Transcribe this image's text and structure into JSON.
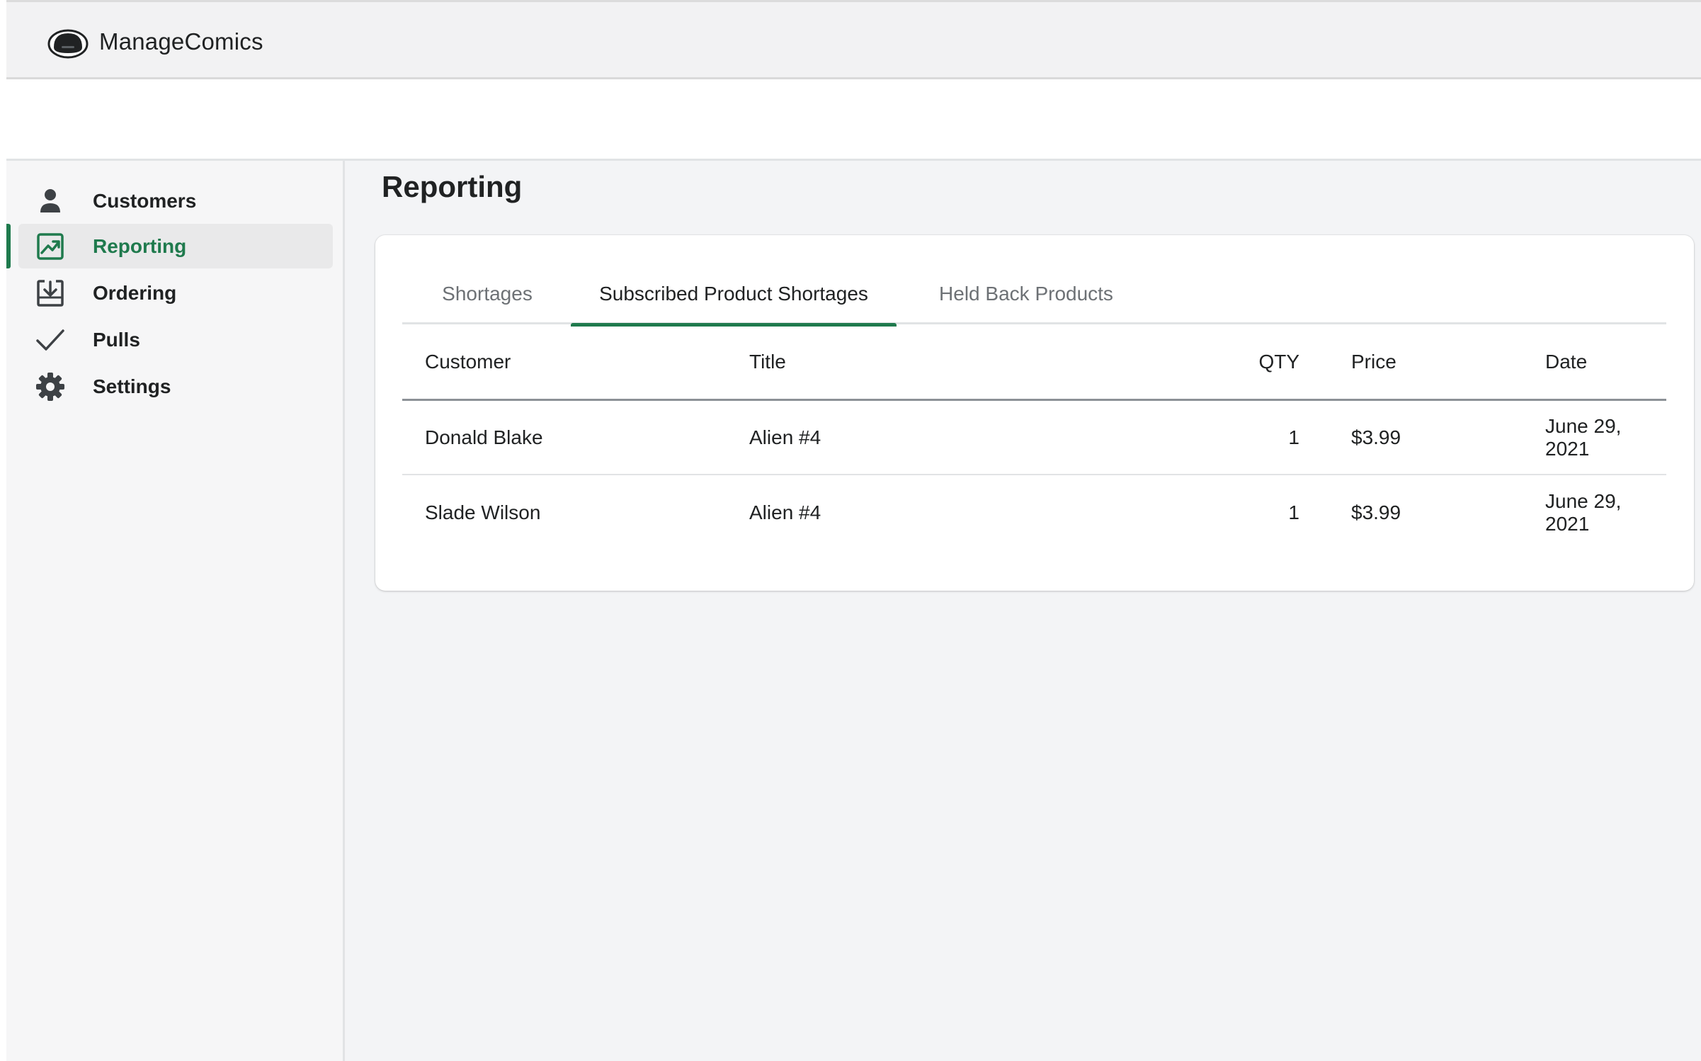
{
  "app": {
    "name": "ManageComics",
    "logo_icon": "robot-head-icon"
  },
  "sidebar": {
    "items": [
      {
        "label": "Customers",
        "icon": "person-icon",
        "active": false
      },
      {
        "label": "Reporting",
        "icon": "report-chart-icon",
        "active": true
      },
      {
        "label": "Ordering",
        "icon": "download-tray-icon",
        "active": false
      },
      {
        "label": "Pulls",
        "icon": "checkmark-icon",
        "active": false
      },
      {
        "label": "Settings",
        "icon": "gear-icon",
        "active": false
      }
    ]
  },
  "main": {
    "title": "Reporting",
    "tabs": [
      {
        "label": "Shortages",
        "active": false
      },
      {
        "label": "Subscribed Product Shortages",
        "active": true
      },
      {
        "label": "Held Back Products",
        "active": false
      }
    ],
    "table": {
      "headers": {
        "customer": "Customer",
        "title": "Title",
        "qty": "QTY",
        "price": "Price",
        "date": "Date"
      },
      "rows": [
        {
          "customer": "Donald Blake",
          "title": "Alien #4",
          "qty": "1",
          "price": "$3.99",
          "date": "June 29, 2021"
        },
        {
          "customer": "Slade Wilson",
          "title": "Alien #4",
          "qty": "1",
          "price": "$3.99",
          "date": "June 29, 2021"
        }
      ]
    }
  },
  "colors": {
    "accent": "#1f7a4d",
    "background": "#f3f4f6",
    "text": "#202223",
    "muted_text": "#6d7175"
  }
}
